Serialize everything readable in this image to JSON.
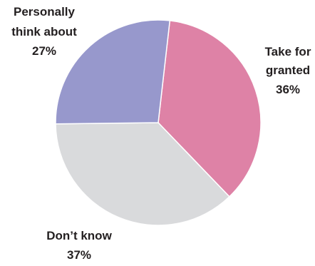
{
  "chart_data": {
    "type": "pie",
    "categories": [
      "Take for granted",
      "Don’t know",
      "Personally think about"
    ],
    "values": [
      36,
      37,
      27
    ],
    "colors": [
      "#de82a6",
      "#d9dadc",
      "#9798cc"
    ],
    "labels": [
      {
        "lines": [
          "Take for",
          "granted"
        ],
        "pct": "36%"
      },
      {
        "lines": [
          "Don’t know"
        ],
        "pct": "37%"
      },
      {
        "lines": [
          "Personally",
          "think about"
        ],
        "pct": "27%"
      }
    ]
  }
}
